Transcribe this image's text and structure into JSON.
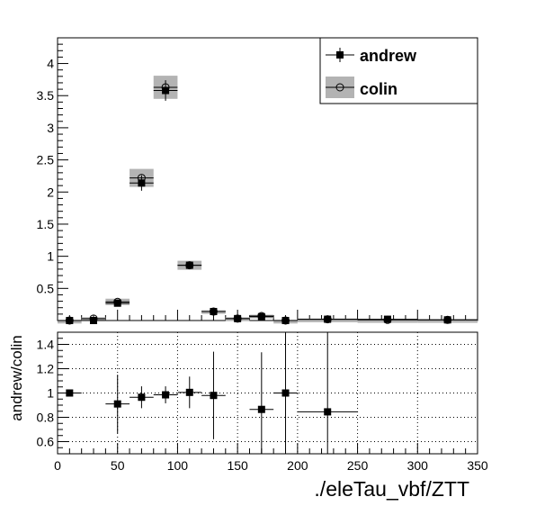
{
  "chart_data": [
    {
      "type": "scatter",
      "title": "",
      "xlabel": "./eleTau_vbf/ZTT",
      "ylabel": "",
      "xlim": [
        0,
        350
      ],
      "ylim": [
        0,
        4.4
      ],
      "x_ticks": [
        0,
        50,
        100,
        150,
        200,
        250,
        300,
        350
      ],
      "y_ticks": [
        0.5,
        1,
        1.5,
        2,
        2.5,
        3,
        3.5,
        4
      ],
      "y_tick_labels": [
        "0.5",
        "1",
        "1.5",
        "2",
        "2.5",
        "3",
        "3.5",
        "4"
      ],
      "grid": false,
      "legend_position": "top-right",
      "series": [
        {
          "name": "andrew",
          "marker": "filled-square",
          "color": "#000000",
          "points": [
            {
              "x": 10,
              "xerr": 10,
              "y": 0.0,
              "yerr": 0.0
            },
            {
              "x": 30,
              "xerr": 10,
              "y": 0.0,
              "yerr": 0.0
            },
            {
              "x": 50,
              "xerr": 10,
              "y": 0.27,
              "yerr": 0.03
            },
            {
              "x": 70,
              "xerr": 10,
              "y": 2.14,
              "yerr": 0.12
            },
            {
              "x": 90,
              "xerr": 10,
              "y": 3.58,
              "yerr": 0.16
            },
            {
              "x": 110,
              "xerr": 10,
              "y": 0.86,
              "yerr": 0.05
            },
            {
              "x": 130,
              "xerr": 10,
              "y": 0.14,
              "yerr": 0.03
            },
            {
              "x": 150,
              "xerr": 10,
              "y": 0.03,
              "yerr": 0.02
            },
            {
              "x": 170,
              "xerr": 10,
              "y": 0.06,
              "yerr": 0.02
            },
            {
              "x": 190,
              "xerr": 10,
              "y": 0.0,
              "yerr": 0.0
            },
            {
              "x": 225,
              "xerr": 25,
              "y": 0.02,
              "yerr": 0.01
            },
            {
              "x": 275,
              "xerr": 25,
              "y": 0.02,
              "yerr": 0.01
            },
            {
              "x": 325,
              "xerr": 25,
              "y": 0.01,
              "yerr": 0.01
            }
          ]
        },
        {
          "name": "colin",
          "marker": "open-circle",
          "color": "#000000",
          "band_color": "#b3b3b3",
          "points": [
            {
              "x": 10,
              "xerr": 10,
              "y": 0.0,
              "yerr": 0.0
            },
            {
              "x": 30,
              "xerr": 10,
              "y": 0.03,
              "yerr": 0.02
            },
            {
              "x": 50,
              "xerr": 10,
              "y": 0.29,
              "yerr": 0.05
            },
            {
              "x": 70,
              "xerr": 10,
              "y": 2.22,
              "yerr": 0.14
            },
            {
              "x": 90,
              "xerr": 10,
              "y": 3.63,
              "yerr": 0.18
            },
            {
              "x": 110,
              "xerr": 10,
              "y": 0.86,
              "yerr": 0.07
            },
            {
              "x": 130,
              "xerr": 10,
              "y": 0.14,
              "yerr": 0.02
            },
            {
              "x": 150,
              "xerr": 10,
              "y": 0.03,
              "yerr": 0.02
            },
            {
              "x": 170,
              "xerr": 10,
              "y": 0.07,
              "yerr": 0.02
            },
            {
              "x": 190,
              "xerr": 10,
              "y": 0.0,
              "yerr": 0.0
            },
            {
              "x": 225,
              "xerr": 25,
              "y": 0.02,
              "yerr": 0.01
            },
            {
              "x": 275,
              "xerr": 25,
              "y": 0.01,
              "yerr": 0.01
            },
            {
              "x": 325,
              "xerr": 25,
              "y": 0.01,
              "yerr": 0.01
            }
          ]
        }
      ]
    },
    {
      "type": "scatter",
      "title": "",
      "xlabel": "",
      "ylabel": "andrew/colin",
      "xlim": [
        0,
        350
      ],
      "ylim": [
        0.5,
        1.5
      ],
      "x_ticks": [
        0,
        50,
        100,
        150,
        200,
        250,
        300,
        350
      ],
      "x_tick_labels": [
        "0",
        "50",
        "100",
        "150",
        "200",
        "250",
        "300",
        "350"
      ],
      "y_ticks": [
        0.6,
        0.8,
        1,
        1.2,
        1.4
      ],
      "y_tick_labels": [
        "0.6",
        "0.8",
        "1",
        "1.2",
        "1.4"
      ],
      "grid": true,
      "series": [
        {
          "marker": "filled-square",
          "color": "#000000",
          "points": [
            {
              "x": 10,
              "xerr": 10,
              "y": 1.0,
              "yerr": 0.0
            },
            {
              "x": 50,
              "xerr": 10,
              "y": 0.91,
              "yerr": 0.24
            },
            {
              "x": 70,
              "xerr": 10,
              "y": 0.965,
              "yerr": 0.09
            },
            {
              "x": 90,
              "xerr": 10,
              "y": 0.985,
              "yerr": 0.07
            },
            {
              "x": 110,
              "xerr": 10,
              "y": 1.005,
              "yerr": 0.13
            },
            {
              "x": 130,
              "xerr": 10,
              "y": 0.98,
              "yerr": 0.36
            },
            {
              "x": 170,
              "xerr": 10,
              "y": 0.865,
              "yerr": 0.47
            },
            {
              "x": 190,
              "xerr": 10,
              "y": 1.0,
              "yerr": 1.0
            },
            {
              "x": 225,
              "xerr": 25,
              "y": 0.845,
              "yerr": 1.0
            }
          ]
        }
      ]
    }
  ]
}
